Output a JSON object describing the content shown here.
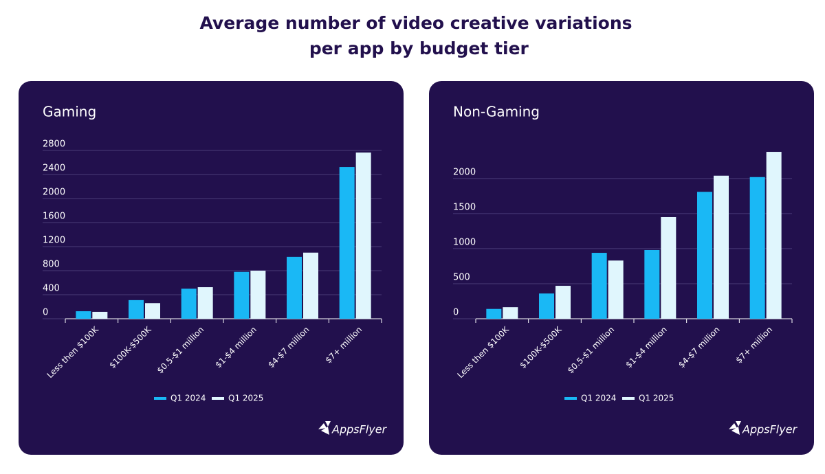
{
  "title": "Average number of video creative variations per app by budget tier",
  "brand": "AppsFlyer",
  "chart_data": [
    {
      "type": "bar",
      "title": "Gaming",
      "categories": [
        "Less then $100K",
        "$100K-$500K",
        "$0.5-$1 million",
        "$1-$4 million",
        "$4-$7 million",
        "$7+ million"
      ],
      "series": [
        {
          "name": "Q1 2024",
          "color": "#1ab8f5",
          "values": [
            125,
            310,
            500,
            780,
            1030,
            2525
          ]
        },
        {
          "name": "Q1 2025",
          "color": "#e0f6fd",
          "values": [
            115,
            260,
            525,
            800,
            1100,
            2765
          ]
        }
      ],
      "ylim": [
        0,
        2800
      ],
      "yticks": [
        0,
        400,
        800,
        1200,
        1600,
        2000,
        2400,
        2800
      ],
      "grid": true,
      "legend": "bottom"
    },
    {
      "type": "bar",
      "title": "Non-Gaming",
      "categories": [
        "Less then $100K",
        "$100K-$500K",
        "$0.5-$1 million",
        "$1-$4 million",
        "$4-$7 million",
        "$7+ million"
      ],
      "series": [
        {
          "name": "Q1 2024",
          "color": "#1ab8f5",
          "values": [
            140,
            360,
            940,
            980,
            1810,
            2020
          ]
        },
        {
          "name": "Q1 2025",
          "color": "#e0f6fd",
          "values": [
            165,
            470,
            830,
            1450,
            2040,
            2380
          ]
        }
      ],
      "ylim": [
        0,
        2400
      ],
      "yticks": [
        0,
        500,
        1000,
        1500,
        2000
      ],
      "grid": true,
      "legend": "bottom"
    }
  ]
}
